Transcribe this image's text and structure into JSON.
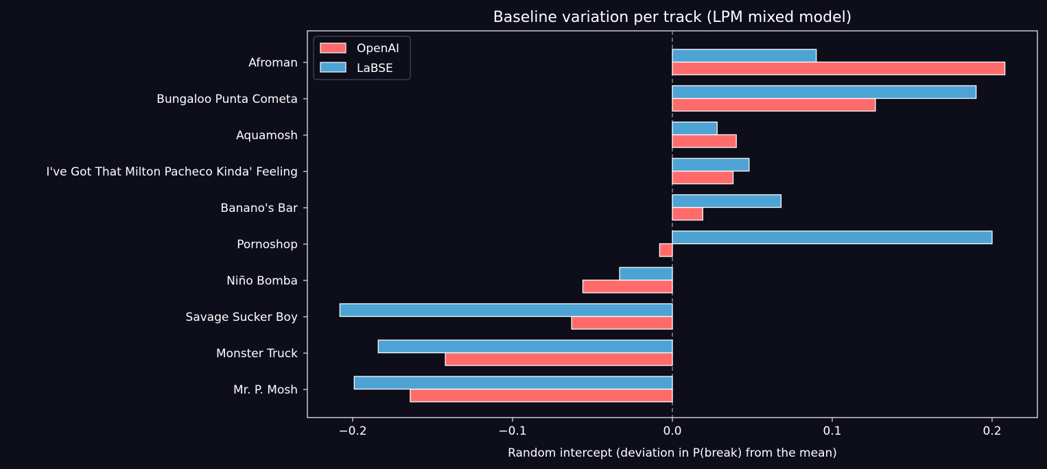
{
  "chart_data": {
    "type": "bar",
    "orientation": "horizontal",
    "title": "Baseline variation per track (LPM mixed model)",
    "xlabel": "Random intercept (deviation in P(break) from the mean)",
    "ylabel": "",
    "xlim": [
      -0.228,
      0.228
    ],
    "xticks": [
      -0.2,
      -0.1,
      0.0,
      0.1,
      0.2
    ],
    "xtick_labels": [
      "−0.2",
      "−0.1",
      "0.0",
      "0.1",
      "0.2"
    ],
    "grid": false,
    "zero_line": "dashed",
    "legend_position": "top-left",
    "categories": [
      "Afroman",
      "Bungaloo Punta Cometa",
      "Aquamosh",
      "I've Got That Milton Pacheco Kinda' Feeling",
      "Banano's Bar",
      "Pornoshop",
      "Niño Bomba",
      "Savage Sucker Boy",
      "Monster Truck",
      "Mr. P. Mosh"
    ],
    "series": [
      {
        "name": "OpenAI",
        "color": "#ff6b6b",
        "values": [
          0.208,
          0.127,
          0.04,
          0.038,
          0.019,
          -0.008,
          -0.056,
          -0.063,
          -0.142,
          -0.164
        ]
      },
      {
        "name": "LaBSE",
        "color": "#4da3d4",
        "values": [
          0.09,
          0.19,
          0.028,
          0.048,
          0.068,
          0.2,
          -0.033,
          -0.208,
          -0.184,
          -0.199
        ]
      }
    ],
    "colors": {
      "background": "#0d0e1a",
      "foreground": "#ffffff",
      "axes_edge": "#e8e8e8",
      "zero_line": "#9a9aa5",
      "bar_edge": "#ffffff"
    }
  }
}
